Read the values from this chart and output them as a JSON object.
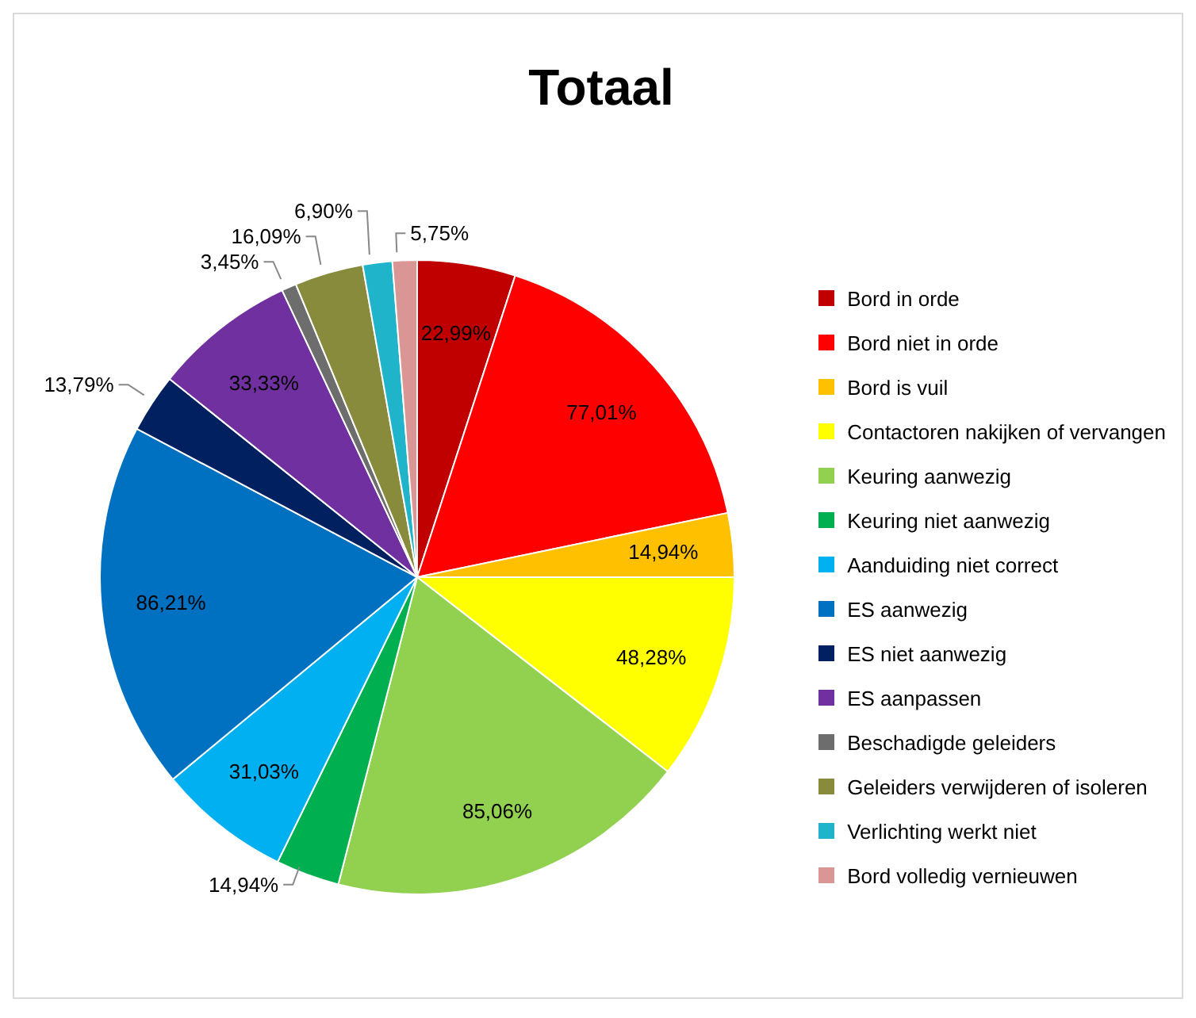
{
  "chart_data": {
    "type": "pie",
    "title": "Totaal",
    "categories": [
      "Bord in orde",
      "Bord niet in orde",
      "Bord is vuil",
      "Contactoren nakijken of vervangen",
      "Keuring aanwezig",
      "Keuring niet aanwezig",
      "Aanduiding niet correct",
      "ES aanwezig",
      "ES niet aanwezig",
      "ES aanpassen",
      "Beschadigde geleiders",
      "Geleiders verwijderen of isoleren",
      "Verlichting werkt niet",
      "Bord volledig vernieuwen"
    ],
    "values": [
      22.99,
      77.01,
      14.94,
      48.28,
      85.06,
      14.94,
      31.03,
      86.21,
      13.79,
      33.33,
      3.45,
      16.09,
      6.9,
      5.75
    ],
    "value_labels": [
      "22,99%",
      "77,01%",
      "14,94%",
      "48,28%",
      "85,06%",
      "14,94%",
      "31,03%",
      "86,21%",
      "13,79%",
      "33,33%",
      "3,45%",
      "16,09%",
      "6,90%",
      "5,75%"
    ],
    "colors": [
      "#c00000",
      "#ff0000",
      "#ffc000",
      "#ffff00",
      "#92d050",
      "#00b050",
      "#00b0f0",
      "#0070c0",
      "#002060",
      "#7030a0",
      "#6d6d6d",
      "#878b3b",
      "#1fb4c9",
      "#d99694"
    ],
    "legend": "right"
  }
}
